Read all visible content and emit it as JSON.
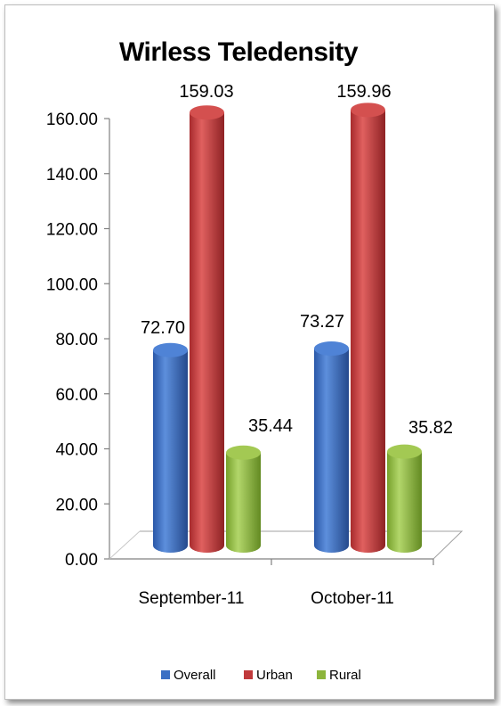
{
  "chart_data": {
    "type": "bar",
    "title": "Wirless Teledensity",
    "categories": [
      "September-11",
      "October-11"
    ],
    "series": [
      {
        "name": "Overall",
        "color": "#3a6fc4",
        "values": [
          72.7,
          73.27
        ],
        "labels": [
          "72.70",
          "73.27"
        ]
      },
      {
        "name": "Urban",
        "color": "#c0393b",
        "values": [
          159.03,
          159.96
        ],
        "labels": [
          "159.03",
          "159.96"
        ]
      },
      {
        "name": "Rural",
        "color": "#8db53c",
        "values": [
          35.44,
          35.82
        ],
        "labels": [
          "35.44",
          "35.82"
        ]
      }
    ],
    "yticks": [
      "0.00",
      "20.00",
      "40.00",
      "60.00",
      "80.00",
      "100.00",
      "120.00",
      "140.00",
      "160.00"
    ],
    "ylim": [
      0,
      160
    ],
    "legend_position": "bottom",
    "grid": false
  }
}
